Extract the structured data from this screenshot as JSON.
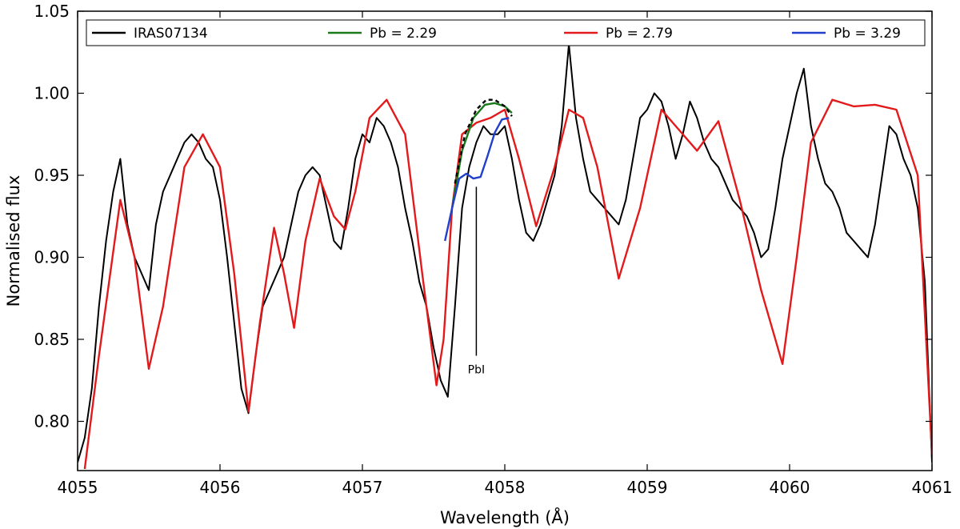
{
  "chart_data": {
    "type": "line",
    "xlabel": "Wavelength (Å)",
    "ylabel": "Normalised flux",
    "xlim": [
      4055,
      4061
    ],
    "ylim": [
      0.77,
      1.05
    ],
    "x_ticks": [
      4055,
      4056,
      4057,
      4058,
      4059,
      4060,
      4061
    ],
    "x_tick_labels": [
      "4055",
      "4056",
      "4057",
      "4058",
      "4059",
      "4060",
      "4061"
    ],
    "y_ticks": [
      0.8,
      0.85,
      0.9,
      0.95,
      1.0,
      1.05
    ],
    "y_tick_labels": [
      "0.80",
      "0.85",
      "0.90",
      "0.95",
      "1.00",
      "1.05"
    ],
    "grid": false,
    "legend_position": "top",
    "legend": [
      {
        "label": "IRAS07134",
        "color": "#000000"
      },
      {
        "label": "Pb = 2.29",
        "color": "#1a7a1a"
      },
      {
        "label": "Pb = 2.79",
        "color": "#e31a1c"
      },
      {
        "label": "Pb = 3.29",
        "color": "#1f3fcc"
      }
    ],
    "annotation": {
      "text": "PbI",
      "x": 4057.8,
      "y_top": 0.943,
      "y_bottom": 0.84
    },
    "series": [
      {
        "name": "IRAS07134",
        "color": "#000000",
        "x": [
          4055.0,
          4055.05,
          4055.1,
          4055.15,
          4055.2,
          4055.25,
          4055.3,
          4055.35,
          4055.4,
          4055.45,
          4055.5,
          4055.55,
          4055.6,
          4055.65,
          4055.7,
          4055.75,
          4055.8,
          4055.85,
          4055.9,
          4055.95,
          4056.0,
          4056.05,
          4056.1,
          4056.15,
          4056.2,
          4056.25,
          4056.3,
          4056.35,
          4056.4,
          4056.45,
          4056.5,
          4056.55,
          4056.6,
          4056.65,
          4056.7,
          4056.75,
          4056.8,
          4056.85,
          4056.9,
          4056.95,
          4057.0,
          4057.05,
          4057.1,
          4057.15,
          4057.2,
          4057.25,
          4057.3,
          4057.35,
          4057.4,
          4057.45,
          4057.5,
          4057.55,
          4057.6,
          4057.65,
          4057.7,
          4057.75,
          4057.8,
          4057.85,
          4057.9,
          4057.95,
          4058.0,
          4058.05,
          4058.1,
          4058.15,
          4058.2,
          4058.25,
          4058.3,
          4058.35,
          4058.4,
          4058.45,
          4058.5,
          4058.55,
          4058.6,
          4058.65,
          4058.7,
          4058.75,
          4058.8,
          4058.85,
          4058.9,
          4058.95,
          4059.0,
          4059.05,
          4059.1,
          4059.15,
          4059.2,
          4059.25,
          4059.3,
          4059.35,
          4059.4,
          4059.45,
          4059.5,
          4059.55,
          4059.6,
          4059.65,
          4059.7,
          4059.75,
          4059.8,
          4059.85,
          4059.9,
          4059.95,
          4060.0,
          4060.05,
          4060.1,
          4060.15,
          4060.2,
          4060.25,
          4060.3,
          4060.35,
          4060.4,
          4060.45,
          4060.5,
          4060.55,
          4060.6,
          4060.65,
          4060.7,
          4060.75,
          4060.8,
          4060.85,
          4060.9,
          4060.95,
          4061.0
        ],
        "values": [
          0.775,
          0.79,
          0.82,
          0.87,
          0.91,
          0.94,
          0.96,
          0.92,
          0.9,
          0.89,
          0.88,
          0.92,
          0.94,
          0.95,
          0.96,
          0.97,
          0.975,
          0.97,
          0.96,
          0.955,
          0.935,
          0.9,
          0.86,
          0.82,
          0.805,
          0.84,
          0.87,
          0.88,
          0.89,
          0.9,
          0.92,
          0.94,
          0.95,
          0.955,
          0.95,
          0.93,
          0.91,
          0.905,
          0.93,
          0.96,
          0.975,
          0.97,
          0.985,
          0.98,
          0.97,
          0.955,
          0.93,
          0.91,
          0.885,
          0.87,
          0.845,
          0.825,
          0.815,
          0.87,
          0.93,
          0.955,
          0.97,
          0.98,
          0.975,
          0.975,
          0.98,
          0.96,
          0.935,
          0.915,
          0.91,
          0.92,
          0.935,
          0.95,
          0.98,
          1.03,
          0.985,
          0.96,
          0.94,
          0.935,
          0.93,
          0.925,
          0.92,
          0.935,
          0.96,
          0.985,
          0.99,
          1.0,
          0.995,
          0.98,
          0.96,
          0.975,
          0.995,
          0.985,
          0.97,
          0.96,
          0.955,
          0.945,
          0.935,
          0.93,
          0.925,
          0.915,
          0.9,
          0.905,
          0.93,
          0.96,
          0.98,
          1.0,
          1.015,
          0.98,
          0.96,
          0.945,
          0.94,
          0.93,
          0.915,
          0.91,
          0.905,
          0.9,
          0.92,
          0.95,
          0.98,
          0.975,
          0.96,
          0.95,
          0.93,
          0.885,
          0.775
        ]
      },
      {
        "name": "Pb = 2.79",
        "color": "#e31a1c",
        "x": [
          4055.05,
          4055.15,
          4055.3,
          4055.4,
          4055.5,
          4055.6,
          4055.75,
          4055.88,
          4056.0,
          4056.1,
          4056.2,
          4056.28,
          4056.38,
          4056.45,
          4056.52,
          4056.6,
          4056.7,
          4056.8,
          4056.88,
          4056.95,
          4057.05,
          4057.17,
          4057.3,
          4057.42,
          4057.52,
          4057.57,
          4057.63,
          4057.7,
          4057.8,
          4057.9,
          4058.0,
          4058.1,
          4058.22,
          4058.35,
          4058.45,
          4058.55,
          4058.65,
          4058.8,
          4058.95,
          4059.1,
          4059.2,
          4059.35,
          4059.5,
          4059.65,
          4059.8,
          4059.95,
          4060.05,
          4060.15,
          4060.3,
          4060.45,
          4060.6,
          4060.75,
          4060.9,
          4061.0
        ],
        "values": [
          0.771,
          0.84,
          0.935,
          0.9,
          0.832,
          0.87,
          0.955,
          0.975,
          0.955,
          0.89,
          0.806,
          0.86,
          0.918,
          0.89,
          0.857,
          0.91,
          0.948,
          0.925,
          0.917,
          0.94,
          0.985,
          0.996,
          0.975,
          0.89,
          0.822,
          0.85,
          0.93,
          0.975,
          0.982,
          0.985,
          0.99,
          0.96,
          0.919,
          0.955,
          0.99,
          0.985,
          0.955,
          0.887,
          0.93,
          0.99,
          0.98,
          0.965,
          0.983,
          0.935,
          0.88,
          0.835,
          0.9,
          0.97,
          0.996,
          0.992,
          0.993,
          0.99,
          0.95,
          0.78
        ]
      },
      {
        "name": "Pb = 2.29",
        "color": "#1a7a1a",
        "x": [
          4057.63,
          4057.7,
          4057.78,
          4057.86,
          4057.93,
          4058.0,
          4058.05
        ],
        "values": [
          0.93,
          0.965,
          0.985,
          0.993,
          0.994,
          0.992,
          0.988
        ]
      },
      {
        "name": "Pb = 3.29",
        "color": "#1f3fcc",
        "x": [
          4057.58,
          4057.63,
          4057.68,
          4057.73,
          4057.78,
          4057.83,
          4057.88,
          4057.93,
          4057.98,
          4058.03
        ],
        "values": [
          0.91,
          0.93,
          0.948,
          0.951,
          0.948,
          0.949,
          0.962,
          0.976,
          0.984,
          0.985
        ]
      },
      {
        "name": "",
        "style": "dashed",
        "color": "#000000",
        "x": [
          4057.65,
          4057.72,
          4057.8,
          4057.87,
          4057.93,
          4058.0,
          4058.05
        ],
        "values": [
          0.945,
          0.975,
          0.99,
          0.996,
          0.996,
          0.992,
          0.986
        ]
      }
    ]
  }
}
